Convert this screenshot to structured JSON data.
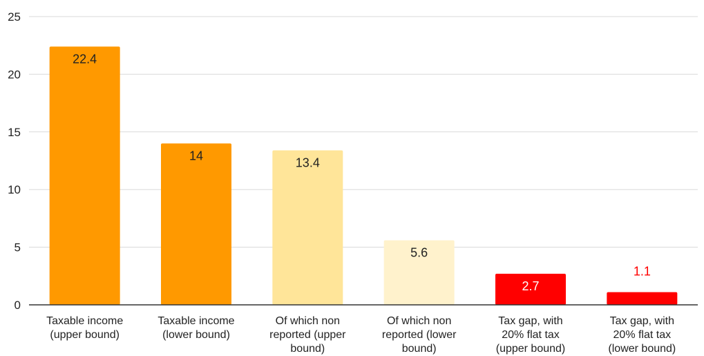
{
  "chart_data": {
    "type": "bar",
    "title": "",
    "xlabel": "",
    "ylabel": "",
    "ylim": [
      0,
      25
    ],
    "yticks": [
      0,
      5,
      10,
      15,
      20,
      25
    ],
    "grid": true,
    "legend": "none",
    "categories": [
      [
        "Taxable income",
        "(upper bound)"
      ],
      [
        "Taxable income",
        "(lower bound)"
      ],
      [
        "Of which non",
        "reported (upper",
        "bound)"
      ],
      [
        "Of which non",
        "reported (lower",
        "bound)"
      ],
      [
        "Tax gap, with",
        "20% flat tax",
        "(upper bound)"
      ],
      [
        "Tax gap, with",
        "20% flat tax",
        "(lower bound)"
      ]
    ],
    "values": [
      22.4,
      14,
      13.4,
      5.6,
      2.7,
      1.1
    ],
    "value_labels": [
      "22.4",
      "14",
      "13.4",
      "5.6",
      "2.7",
      "1.1"
    ],
    "bar_colors": [
      "#ff9900",
      "#ff9900",
      "#ffe599",
      "#fff2cc",
      "#ff0000",
      "#ff0000"
    ],
    "value_label_colors": [
      "#222222",
      "#222222",
      "#222222",
      "#222222",
      "#ffffff",
      "#ff0000"
    ],
    "label_inside": [
      true,
      true,
      true,
      true,
      true,
      false
    ],
    "colors": {
      "grid": "#d9d9d9",
      "axis": "#333333",
      "text": "#222222"
    }
  }
}
